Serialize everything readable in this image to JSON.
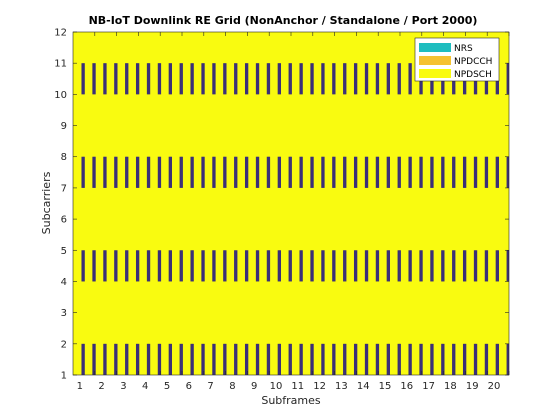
{
  "chart_data": {
    "type": "heatmap",
    "title": "NB-IoT Downlink RE Grid (NonAnchor / Standalone / Port 2000)",
    "xlabel": "Subframes",
    "ylabel": "Subcarriers",
    "xlim": [
      0,
      20
    ],
    "ylim": [
      1,
      12
    ],
    "xticks": [
      "1",
      "2",
      "3",
      "4",
      "5",
      "6",
      "7",
      "8",
      "9",
      "10",
      "11",
      "12",
      "13",
      "14",
      "15",
      "16",
      "17",
      "18",
      "19",
      "20"
    ],
    "yticks": [
      "1",
      "2",
      "3",
      "4",
      "5",
      "6",
      "7",
      "8",
      "9",
      "10",
      "11",
      "12"
    ],
    "background_channel": "NPDSCH",
    "legend": {
      "position": "top-right",
      "entries": [
        {
          "label": "NRS",
          "color": "#1ebdbf"
        },
        {
          "label": "NPDCCH",
          "color": "#f5c231"
        },
        {
          "label": "NPDSCH",
          "color": "#f9fb10"
        }
      ]
    },
    "colors": {
      "grid_fill": "#f9fb10",
      "nrs_marker": "#3a2f78"
    },
    "nrs_subcarrier_bands": [
      [
        1,
        2
      ],
      [
        4,
        5
      ],
      [
        7,
        8
      ],
      [
        10,
        11
      ]
    ],
    "nrs_symbol_pairs_per_subframe": [
      [
        0.43,
        0.5
      ],
      [
        0.93,
        1.0
      ]
    ]
  }
}
